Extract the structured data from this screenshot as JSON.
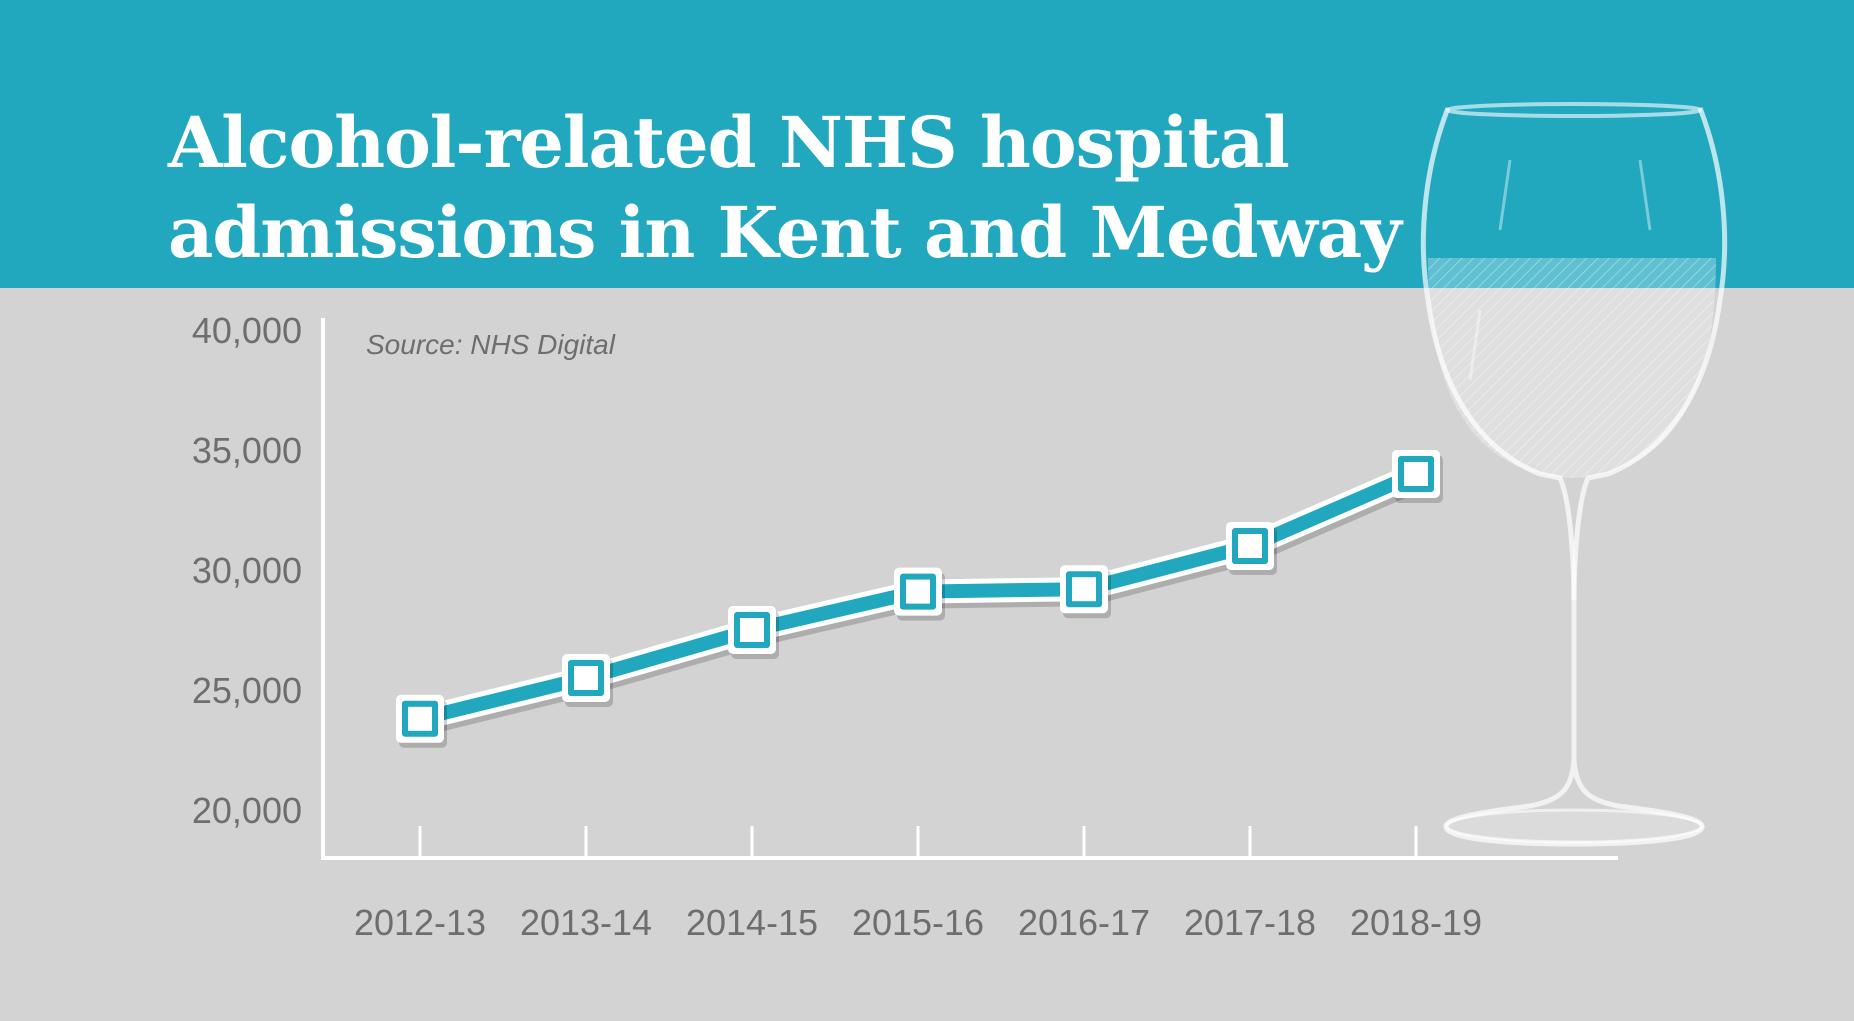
{
  "header": {
    "title_line1": "Alcohol-related NHS hospital",
    "title_line2": "admissions in Kent and Medway",
    "background_color": "#21a8bf"
  },
  "chart_data": {
    "type": "line",
    "title": "Alcohol-related NHS hospital admissions in Kent and Medway",
    "source": "Source: NHS Digital",
    "categories": [
      "2012-13",
      "2013-14",
      "2014-15",
      "2015-16",
      "2016-17",
      "2017-18",
      "2018-19"
    ],
    "series": [
      {
        "values": [
          23800,
          25500,
          27500,
          29100,
          29200,
          31000,
          34000
        ]
      }
    ],
    "yticks": [
      "40,000",
      "35,000",
      "30,000",
      "25,000",
      "20,000"
    ],
    "ylim": [
      20000,
      40000
    ],
    "grid": false,
    "legend": "none",
    "line_color": "#21a8bf",
    "marker": "white square"
  },
  "decoration": {
    "icon": "wine-glass-icon"
  }
}
